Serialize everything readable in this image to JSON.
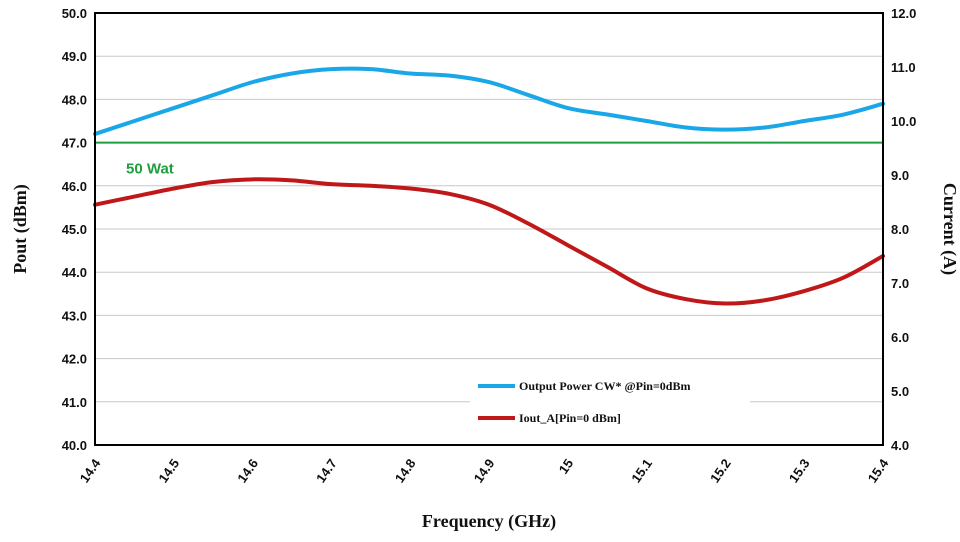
{
  "chart_data": {
    "type": "line",
    "xlabel": "Frequency (GHz)",
    "ylabel_left": "Pout (dBm)",
    "ylabel_right": "Current (A)",
    "x_ticks": [
      "14.4",
      "14.5",
      "14.6",
      "14.7",
      "14.8",
      "14.9",
      "15",
      "15.1",
      "15.2",
      "15.3",
      "15.4"
    ],
    "x_range": [
      14.4,
      15.4
    ],
    "ylim_left": [
      40.0,
      50.0
    ],
    "ylim_right": [
      4.0,
      12.0
    ],
    "y_left_ticks": [
      "40.0",
      "41.0",
      "42.0",
      "43.0",
      "44.0",
      "45.0",
      "46.0",
      "47.0",
      "48.0",
      "49.0",
      "50.0"
    ],
    "y_right_ticks": [
      "4.0",
      "5.0",
      "6.0",
      "7.0",
      "8.0",
      "9.0",
      "10.0",
      "11.0",
      "12.0"
    ],
    "grid": true,
    "legend_position": "bottom-right",
    "series": [
      {
        "name": "Output Power CW* @Pin=0dBm",
        "axis": "left",
        "color": "#1aa7e8",
        "x": [
          14.4,
          14.45,
          14.5,
          14.55,
          14.6,
          14.65,
          14.7,
          14.75,
          14.8,
          14.85,
          14.9,
          14.95,
          15.0,
          15.05,
          15.1,
          15.15,
          15.2,
          15.25,
          15.3,
          15.35,
          15.4
        ],
        "y": [
          47.2,
          47.5,
          47.8,
          48.1,
          48.4,
          48.6,
          48.7,
          48.7,
          48.6,
          48.55,
          48.4,
          48.1,
          47.8,
          47.65,
          47.5,
          47.35,
          47.3,
          47.35,
          47.5,
          47.65,
          47.9
        ]
      },
      {
        "name": "Iout_A[Pin=0 dBm]",
        "axis": "right",
        "color": "#c01818",
        "x": [
          14.4,
          14.45,
          14.5,
          14.55,
          14.6,
          14.65,
          14.7,
          14.75,
          14.8,
          14.85,
          14.9,
          14.95,
          15.0,
          15.05,
          15.1,
          15.15,
          15.2,
          15.25,
          15.3,
          15.35,
          15.4
        ],
        "y": [
          8.45,
          8.6,
          8.75,
          8.87,
          8.92,
          8.9,
          8.83,
          8.8,
          8.75,
          8.65,
          8.45,
          8.1,
          7.7,
          7.3,
          6.9,
          6.7,
          6.62,
          6.68,
          6.85,
          7.1,
          7.5
        ]
      }
    ],
    "reference_line": {
      "axis": "left",
      "y": 47.0,
      "label": "50 Wat",
      "color": "#1e9e3e"
    }
  }
}
